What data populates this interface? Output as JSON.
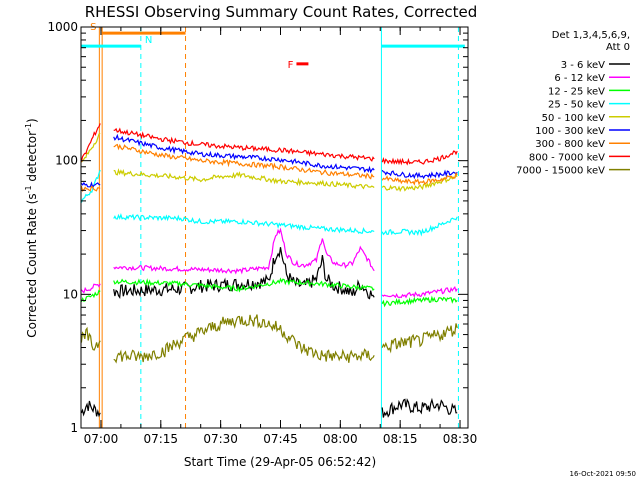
{
  "chart_data": {
    "type": "line",
    "title": "RHESSI Observing Summary Count Rates, Corrected",
    "xlabel": "Start Time (29-Apr-05 06:52:42)",
    "ylabel_main": "Corrected Count Rate (s",
    "ylabel_sup1": "-1",
    "ylabel_mid": " detector",
    "ylabel_sup2": "-1",
    "ylabel_end": ")",
    "y_scale": "log",
    "ylim": [
      1,
      1000
    ],
    "xlim_minutes": [
      415,
      512
    ],
    "x_ticks": [
      {
        "label": "07:00",
        "minutes": 420
      },
      {
        "label": "07:15",
        "minutes": 435
      },
      {
        "label": "07:30",
        "minutes": 450
      },
      {
        "label": "07:45",
        "minutes": 465
      },
      {
        "label": "08:00",
        "minutes": 480
      },
      {
        "label": "08:15",
        "minutes": 495
      },
      {
        "label": "08:30",
        "minutes": 510
      }
    ],
    "y_ticks": [
      {
        "label": "1",
        "value": 1
      },
      {
        "label": "10",
        "value": 10
      },
      {
        "label": "100",
        "value": 100
      },
      {
        "label": "1000",
        "value": 1000
      }
    ],
    "legend": {
      "header1": "Det 1,3,4,5,6,9,",
      "header2": "Att 0",
      "position": "right"
    },
    "series": [
      {
        "name": "3 - 6 keV",
        "color": "#000000",
        "gaps": [
          [
            [
              415.1,
              1.3
            ],
            [
              416.5,
              1.5
            ],
            [
              418.0,
              1.4
            ],
            [
              419.8,
              1.3
            ]
          ],
          [
            [
              423.2,
              10.5
            ],
            [
              440.0,
              11.0
            ],
            [
              445.0,
              11.5
            ],
            [
              455.0,
              12.0
            ],
            [
              462.0,
              12.5
            ],
            [
              463.8,
              20.0
            ],
            [
              465.0,
              22.0
            ],
            [
              466.5,
              14.0
            ],
            [
              468.5,
              12.0
            ],
            [
              471.0,
              11.5
            ],
            [
              474.0,
              13.0
            ],
            [
              475.5,
              18.0
            ],
            [
              476.5,
              13.0
            ],
            [
              478.5,
              11.5
            ],
            [
              481.0,
              11.0
            ],
            [
              483.0,
              10.0
            ],
            [
              485.0,
              12.0
            ],
            [
              487.0,
              10.5
            ],
            [
              488.5,
              9.5
            ]
          ],
          [
            [
              490.5,
              1.3
            ],
            [
              495.0,
              1.5
            ],
            [
              500.0,
              1.4
            ],
            [
              505.0,
              1.5
            ],
            [
              509.3,
              1.3
            ]
          ]
        ]
      },
      {
        "name": "6 - 12 keV",
        "color": "#ff00ff",
        "gaps": [
          [
            [
              415.1,
              10.5
            ],
            [
              417.0,
              11.0
            ],
            [
              419.8,
              12.0
            ]
          ],
          [
            [
              423.2,
              16.0
            ],
            [
              440.0,
              15.5
            ],
            [
              455.0,
              15.0
            ],
            [
              462.0,
              16.0
            ],
            [
              463.8,
              28.0
            ],
            [
              465.0,
              30.0
            ],
            [
              466.5,
              20.0
            ],
            [
              468.5,
              17.0
            ],
            [
              471.0,
              16.5
            ],
            [
              474.0,
              18.0
            ],
            [
              475.5,
              27.0
            ],
            [
              476.5,
              20.0
            ],
            [
              478.5,
              17.0
            ],
            [
              481.0,
              16.5
            ],
            [
              483.0,
              17.0
            ],
            [
              485.0,
              22.0
            ],
            [
              487.0,
              18.0
            ],
            [
              488.5,
              15.0
            ]
          ],
          [
            [
              490.5,
              10.0
            ],
            [
              495.0,
              9.8
            ],
            [
              500.0,
              10.0
            ],
            [
              505.0,
              10.5
            ],
            [
              509.3,
              11.0
            ]
          ]
        ]
      },
      {
        "name": "12 - 25 keV",
        "color": "#00ff00",
        "gaps": [
          [
            [
              415.1,
              9.0
            ],
            [
              417.0,
              9.5
            ],
            [
              419.8,
              10.5
            ]
          ],
          [
            [
              423.2,
              12.5
            ],
            [
              440.0,
              12.0
            ],
            [
              455.0,
              11.0
            ],
            [
              465.0,
              12.5
            ],
            [
              475.0,
              12.0
            ],
            [
              488.5,
              11.0
            ]
          ],
          [
            [
              490.5,
              8.5
            ],
            [
              495.0,
              8.8
            ],
            [
              500.0,
              9.0
            ],
            [
              505.0,
              9.2
            ],
            [
              509.3,
              9.0
            ]
          ]
        ]
      },
      {
        "name": "25 - 50 keV",
        "color": "#00ffff",
        "gaps": [
          [
            [
              415.1,
              50.0
            ],
            [
              416.5,
              55.0
            ],
            [
              418.0,
              62.0
            ],
            [
              419.8,
              85.0
            ]
          ],
          [
            [
              423.2,
              38.0
            ],
            [
              440.0,
              37.0
            ],
            [
              445.0,
              35.0
            ],
            [
              455.0,
              35.0
            ],
            [
              465.0,
              33.0
            ],
            [
              475.0,
              31.0
            ],
            [
              488.5,
              29.5
            ]
          ],
          [
            [
              490.5,
              29.0
            ],
            [
              495.0,
              29.5
            ],
            [
              500.0,
              29.0
            ],
            [
              505.0,
              33.0
            ],
            [
              509.3,
              38.0
            ]
          ]
        ]
      },
      {
        "name": "50 - 100 keV",
        "color": "#cccc00",
        "gaps": [
          [
            [
              415.1,
              95.0
            ],
            [
              416.5,
              110.0
            ],
            [
              418.0,
              130.0
            ],
            [
              419.8,
              160.0
            ]
          ],
          [
            [
              423.2,
              82.0
            ],
            [
              440.0,
              75.0
            ],
            [
              445.0,
              72.0
            ],
            [
              450.0,
              76.0
            ],
            [
              455.0,
              78.0
            ],
            [
              460.0,
              74.0
            ],
            [
              465.0,
              70.0
            ],
            [
              475.0,
              68.0
            ],
            [
              488.5,
              63.0
            ]
          ],
          [
            [
              490.5,
              63.0
            ],
            [
              495.0,
              62.0
            ],
            [
              500.0,
              63.0
            ],
            [
              505.0,
              70.0
            ],
            [
              509.3,
              76.0
            ]
          ]
        ]
      },
      {
        "name": "100 - 300 keV",
        "color": "#0000ff",
        "gaps": [
          [
            [
              415.1,
              66.0
            ],
            [
              417.0,
              66.0
            ],
            [
              419.8,
              66.0
            ]
          ],
          [
            [
              423.2,
              150.0
            ],
            [
              435.0,
              125.0
            ],
            [
              445.0,
              112.0
            ],
            [
              455.0,
              107.0
            ],
            [
              465.0,
              102.0
            ],
            [
              475.0,
              92.0
            ],
            [
              488.5,
              85.0
            ]
          ],
          [
            [
              490.5,
              83.0
            ],
            [
              495.0,
              79.0
            ],
            [
              500.0,
              77.0
            ],
            [
              505.0,
              79.0
            ],
            [
              509.3,
              82.0
            ]
          ]
        ]
      },
      {
        "name": "300 - 800 keV",
        "color": "#ff8000",
        "gaps": [
          [
            [
              415.1,
              62.0
            ],
            [
              417.0,
              62.0
            ],
            [
              419.8,
              62.0
            ]
          ],
          [
            [
              423.2,
              130.0
            ],
            [
              435.0,
              110.0
            ],
            [
              445.0,
              100.0
            ],
            [
              455.0,
              95.0
            ],
            [
              465.0,
              90.0
            ],
            [
              475.0,
              82.0
            ],
            [
              488.5,
              76.0
            ]
          ],
          [
            [
              490.5,
              74.0
            ],
            [
              495.0,
              70.0
            ],
            [
              500.0,
              69.0
            ],
            [
              505.0,
              72.0
            ],
            [
              509.3,
              78.0
            ]
          ]
        ]
      },
      {
        "name": "800 - 7000 keV",
        "color": "#ff0000",
        "gaps": [
          [
            [
              415.1,
              100.0
            ],
            [
              416.5,
              120.0
            ],
            [
              418.0,
              150.0
            ],
            [
              419.8,
              190.0
            ]
          ],
          [
            [
              423.2,
              170.0
            ],
            [
              435.0,
              145.0
            ],
            [
              445.0,
              132.0
            ],
            [
              455.0,
              125.0
            ],
            [
              465.0,
              120.0
            ],
            [
              475.0,
              112.0
            ],
            [
              488.5,
              103.0
            ]
          ],
          [
            [
              490.5,
              100.0
            ],
            [
              495.0,
              98.0
            ],
            [
              500.0,
              97.0
            ],
            [
              505.0,
              104.0
            ],
            [
              509.3,
              118.0
            ]
          ]
        ]
      },
      {
        "name": "7000 - 15000 keV",
        "color": "#808000",
        "gaps": [
          [
            [
              415.1,
              4.5
            ],
            [
              416.5,
              5.0
            ],
            [
              418.0,
              4.0
            ],
            [
              419.8,
              4.5
            ]
          ],
          [
            [
              423.2,
              3.5
            ],
            [
              430.0,
              3.4
            ],
            [
              436.0,
              3.8
            ],
            [
              440.0,
              4.5
            ],
            [
              445.0,
              5.2
            ],
            [
              450.0,
              6.0
            ],
            [
              455.0,
              6.5
            ],
            [
              460.0,
              6.3
            ],
            [
              465.0,
              5.5
            ],
            [
              470.0,
              4.0
            ],
            [
              475.0,
              3.5
            ],
            [
              480.0,
              3.4
            ],
            [
              488.5,
              3.5
            ]
          ],
          [
            [
              490.5,
              4.0
            ],
            [
              495.0,
              4.3
            ],
            [
              500.0,
              4.5
            ],
            [
              505.0,
              5.0
            ],
            [
              509.3,
              5.6
            ]
          ]
        ]
      }
    ],
    "annotations": [
      {
        "type": "vline",
        "minutes": 420.3,
        "color": "#ff8000",
        "dashed": false
      },
      {
        "type": "vline",
        "minutes": 419.6,
        "color": "#ff8000",
        "dashed": false
      },
      {
        "type": "vline",
        "minutes": 430.0,
        "color": "#00ffff",
        "dashed": true
      },
      {
        "type": "vline",
        "minutes": 441.2,
        "color": "#ff8000",
        "dashed": true
      },
      {
        "type": "vline",
        "minutes": 490.3,
        "color": "#00ffff",
        "dashed": false
      },
      {
        "type": "vline",
        "minutes": 509.6,
        "color": "#00ffff",
        "dashed": true
      },
      {
        "type": "bar",
        "label": "S",
        "start": 420.3,
        "end": 441.2,
        "y": 900,
        "color": "#ff8000"
      },
      {
        "type": "bar",
        "label": "N",
        "start": 415.0,
        "end": 430.0,
        "y": 720,
        "color": "#00ffff"
      },
      {
        "type": "bar",
        "label": "",
        "start": 490.3,
        "end": 511.2,
        "y": 720,
        "color": "#00ffff"
      },
      {
        "type": "bar",
        "label": "F",
        "start": 469.0,
        "end": 472.0,
        "y": 530,
        "color": "#ff0000"
      }
    ]
  },
  "footer": {
    "timestamp": "16-Oct-2021 09:50"
  }
}
